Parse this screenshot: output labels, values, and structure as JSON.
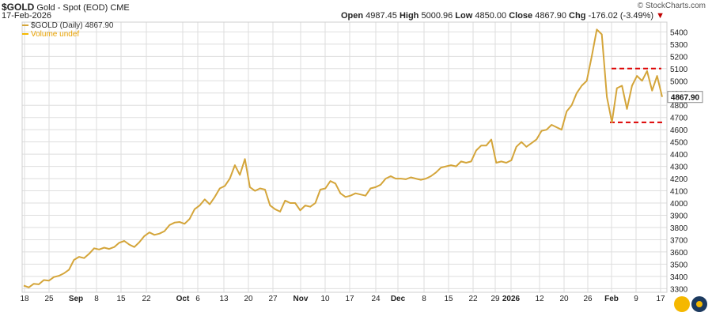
{
  "header": {
    "symbol": "$GOLD",
    "name": "Gold - Spot (EOD)",
    "exchange": "CME",
    "date": "17-Feb-2026",
    "credit": "© StockCharts.com",
    "open_label": "Open",
    "open": "4987.45",
    "high_label": "High",
    "high": "5000.96",
    "low_label": "Low",
    "low": "4850.00",
    "close_label": "Close",
    "close": "4867.90",
    "chg_label": "Chg",
    "chg": "-176.02 (-3.49%)",
    "chg_arrow": "▼"
  },
  "legend": {
    "series_label": "$GOLD (Daily) 4867.90",
    "volume_label": "Volume undef"
  },
  "colors": {
    "line": "#d4a53a",
    "grid": "#dedede",
    "dashed": "#dd0000",
    "badge": "#f5b800"
  },
  "chart_data": {
    "type": "line",
    "series": [
      {
        "name": "$GOLD (Daily) 4867.90",
        "values": [
          3325,
          3310,
          3340,
          3335,
          3370,
          3365,
          3395,
          3405,
          3425,
          3455,
          3535,
          3560,
          3550,
          3585,
          3630,
          3620,
          3635,
          3625,
          3640,
          3675,
          3690,
          3660,
          3640,
          3680,
          3730,
          3760,
          3740,
          3750,
          3770,
          3820,
          3840,
          3845,
          3830,
          3870,
          3950,
          3980,
          4030,
          3990,
          4050,
          4120,
          4140,
          4200,
          4310,
          4230,
          4360,
          4130,
          4100,
          4120,
          4110,
          3980,
          3950,
          3930,
          4020,
          4000,
          4000,
          3940,
          3980,
          3970,
          4000,
          4110,
          4120,
          4180,
          4160,
          4080,
          4050,
          4060,
          4080,
          4070,
          4060,
          4120,
          4130,
          4150,
          4200,
          4220,
          4200,
          4200,
          4195,
          4210,
          4200,
          4190,
          4200,
          4220,
          4250,
          4290,
          4300,
          4310,
          4300,
          4340,
          4330,
          4340,
          4430,
          4470,
          4470,
          4520,
          4330,
          4340,
          4330,
          4350,
          4460,
          4500,
          4460,
          4490,
          4520,
          4590,
          4600,
          4640,
          4620,
          4600,
          4750,
          4800,
          4900,
          4960,
          5000,
          5200,
          5420,
          5380,
          4870,
          4660,
          4940,
          4960,
          4770,
          4960,
          5040,
          5000,
          5080,
          4920,
          5040,
          4868
        ]
      }
    ],
    "x_tick_labels": [
      "18",
      "25",
      "Sep",
      "8",
      "15",
      "22",
      "Oct",
      "6",
      "13",
      "20",
      "27",
      "Nov",
      "10",
      "17",
      "24",
      "Dec",
      "8",
      "15",
      "22",
      "29",
      "2026",
      "12",
      "20",
      "26",
      "Feb",
      "9",
      "17"
    ],
    "y_tick_labels": [
      "3300",
      "3400",
      "3500",
      "3600",
      "3700",
      "3800",
      "3900",
      "4000",
      "4100",
      "4200",
      "4300",
      "4400",
      "4500",
      "4600",
      "4700",
      "4800",
      "4900",
      "5000",
      "5100",
      "5200",
      "5300",
      "5400"
    ],
    "ylim": [
      3270,
      5480
    ],
    "last_value_label": "4867.90",
    "annotations": {
      "resistance": 5100,
      "support": 4660
    },
    "grid": true
  }
}
